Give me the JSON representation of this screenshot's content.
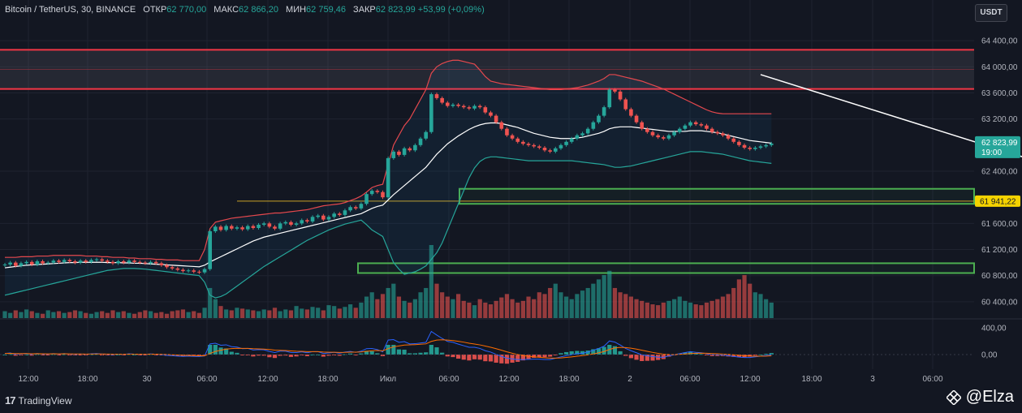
{
  "header": {
    "symbol": "Bitcoin / TetherUS, 30, BINANCE",
    "open_label": "ОТКР",
    "open_value": "62 770,00",
    "high_label": "МАКС",
    "high_value": "62 866,20",
    "low_label": "МИН",
    "low_value": "62 759,46",
    "close_label": "ЗАКР",
    "close_value": "62 823,99",
    "change": "+53,99 (+0,09%)"
  },
  "currency_button": "USDT",
  "brand": {
    "logo": "17",
    "name": "TradingView"
  },
  "watermark": "@Elza",
  "colors": {
    "bull": "#26a69a",
    "bear": "#ef5350",
    "resistance": "#f23645",
    "support": "#4caf50",
    "trend": "#ffffff",
    "level": "#f5d300"
  },
  "chart_data": {
    "type": "candlestick",
    "price_axis": {
      "ticks": [
        "64 400,00",
        "64 000,00",
        "63 600,00",
        "63 200,00",
        "62 400,00",
        "61 600,00",
        "61 200,00",
        "60 800,00",
        "60 400,00"
      ],
      "ylim": [
        60150,
        64650
      ]
    },
    "time_axis": {
      "ticks": [
        "12:00",
        "18:00",
        "30",
        "06:00",
        "12:00",
        "18:00",
        "Июл",
        "06:00",
        "12:00",
        "18:00",
        "2",
        "06:00",
        "12:00",
        "18:00",
        "3",
        "06:00"
      ]
    },
    "last_price_label": "62 823,99",
    "countdown_label": "19:00",
    "level_label": "61 941,22",
    "level_price": 61941.22,
    "resistance_zone": {
      "top": 64260,
      "bottom": 63660
    },
    "support_zones": [
      {
        "top": 62130,
        "bottom": 61900
      },
      {
        "top": 60990,
        "bottom": 60840
      }
    ],
    "trendline": {
      "from": [
        140,
        63880
      ],
      "to": [
        224,
        61700
      ]
    },
    "oscillator_ticks": [
      "400,00",
      "0,00"
    ],
    "close": [
      60970,
      61000,
      60950,
      60990,
      61010,
      60970,
      61020,
      60990,
      61000,
      61030,
      61010,
      61040,
      61020,
      61000,
      61030,
      61010,
      61040,
      61050,
      61030,
      61010,
      60990,
      61020,
      61000,
      61030,
      61010,
      61000,
      60990,
      61010,
      60990,
      60960,
      60930,
      60910,
      60890,
      60870,
      60880,
      60860,
      60850,
      60900,
      61480,
      61550,
      61500,
      61560,
      61520,
      61540,
      61510,
      61560,
      61530,
      61580,
      61600,
      61550,
      61520,
      61600,
      61620,
      61580,
      61600,
      61650,
      61630,
      61700,
      61720,
      61660,
      61700,
      61750,
      61730,
      61800,
      61850,
      61830,
      61900,
      62050,
      62100,
      62080,
      62000,
      62600,
      62700,
      62650,
      62750,
      62720,
      62800,
      62900,
      63000,
      63580,
      63520,
      63450,
      63400,
      63420,
      63400,
      63380,
      63360,
      63400,
      63380,
      63300,
      63250,
      63150,
      63050,
      62950,
      62900,
      62850,
      62820,
      62800,
      62780,
      62760,
      62720,
      62700,
      62750,
      62800,
      62850,
      62900,
      62950,
      62980,
      63050,
      63150,
      63250,
      63380,
      63650,
      63620,
      63500,
      63350,
      63250,
      63150,
      63050,
      63000,
      62950,
      62920,
      62900,
      62950,
      63000,
      63050,
      63100,
      63150,
      63120,
      63100,
      63050,
      63000,
      62980,
      62950,
      62900,
      62850,
      62800,
      62760,
      62740,
      62760,
      62780,
      62800,
      62824
    ],
    "volume": [
      8,
      6,
      9,
      7,
      10,
      8,
      6,
      5,
      9,
      7,
      8,
      6,
      7,
      9,
      8,
      6,
      5,
      7,
      8,
      6,
      9,
      7,
      8,
      6,
      5,
      7,
      9,
      8,
      6,
      7,
      5,
      8,
      9,
      10,
      7,
      8,
      6,
      12,
      35,
      22,
      14,
      10,
      9,
      12,
      11,
      10,
      9,
      8,
      10,
      9,
      12,
      8,
      10,
      9,
      14,
      11,
      10,
      13,
      12,
      9,
      15,
      14,
      11,
      13,
      16,
      12,
      18,
      25,
      30,
      22,
      28,
      35,
      40,
      25,
      20,
      18,
      22,
      30,
      35,
      85,
      40,
      30,
      25,
      22,
      28,
      20,
      18,
      15,
      22,
      18,
      16,
      20,
      24,
      28,
      22,
      18,
      20,
      25,
      22,
      30,
      28,
      35,
      40,
      30,
      25,
      22,
      28,
      32,
      35,
      40,
      45,
      50,
      55,
      35,
      30,
      28,
      25,
      22,
      20,
      18,
      16,
      15,
      18,
      20,
      22,
      25,
      20,
      18,
      16,
      15,
      18,
      20,
      22,
      25,
      28,
      35,
      45,
      50,
      40,
      30,
      28,
      22,
      18
    ],
    "bb_upper": [
      61080,
      61080,
      61080,
      61090,
      61090,
      61090,
      61100,
      61100,
      61100,
      61110,
      61110,
      61110,
      61110,
      61110,
      61110,
      61100,
      61100,
      61100,
      61090,
      61090,
      61080,
      61080,
      61080,
      61070,
      61070,
      61060,
      61060,
      61060,
      61050,
      61050,
      61040,
      61040,
      61040,
      61030,
      61030,
      61030,
      61030,
      61200,
      61520,
      61620,
      61640,
      61660,
      61680,
      61690,
      61700,
      61710,
      61720,
      61730,
      61740,
      61750,
      61760,
      61760,
      61770,
      61780,
      61790,
      61800,
      61810,
      61830,
      61850,
      61870,
      61880,
      61890,
      61900,
      61920,
      61950,
      61980,
      62020,
      62080,
      62150,
      62180,
      62200,
      62500,
      62800,
      62950,
      63100,
      63200,
      63350,
      63500,
      63650,
      63900,
      64000,
      64050,
      64080,
      64100,
      64100,
      64080,
      64060,
      64040,
      63950,
      63850,
      63780,
      63760,
      63740,
      63730,
      63720,
      63710,
      63700,
      63690,
      63680,
      63670,
      63660,
      63650,
      63650,
      63650,
      63660,
      63670,
      63680,
      63700,
      63720,
      63750,
      63780,
      63820,
      63880,
      63880,
      63860,
      63840,
      63820,
      63800,
      63780,
      63750,
      63720,
      63690,
      63660,
      63620,
      63580,
      63540,
      63500,
      63460,
      63420,
      63380,
      63340,
      63310,
      63290,
      63280,
      63280,
      63280,
      63280,
      63280,
      63280,
      63280,
      63280,
      63280,
      63280
    ],
    "bb_mid": [
      60920,
      60930,
      60940,
      60950,
      60960,
      60965,
      60970,
      60975,
      60980,
      60985,
      60990,
      60995,
      61000,
      61000,
      61005,
      61005,
      61005,
      61005,
      61005,
      61000,
      61000,
      61000,
      60995,
      60995,
      60990,
      60990,
      60985,
      60980,
      60975,
      60970,
      60965,
      60960,
      60955,
      60950,
      60945,
      60940,
      60935,
      60960,
      61010,
      61050,
      61090,
      61130,
      61170,
      61210,
      61250,
      61290,
      61330,
      61360,
      61390,
      61410,
      61430,
      61450,
      61470,
      61490,
      61510,
      61530,
      61550,
      61570,
      61590,
      61610,
      61630,
      61650,
      61670,
      61690,
      61710,
      61730,
      61750,
      61790,
      61830,
      61860,
      61880,
      61960,
      62040,
      62110,
      62180,
      62250,
      62320,
      62390,
      62460,
      62560,
      62660,
      62740,
      62820,
      62880,
      62940,
      62990,
      63040,
      63080,
      63110,
      63130,
      63140,
      63140,
      63130,
      63110,
      63090,
      63070,
      63040,
      63010,
      62980,
      62960,
      62940,
      62920,
      62910,
      62900,
      62900,
      62900,
      62910,
      62920,
      62940,
      62960,
      62980,
      63010,
      63050,
      63070,
      63080,
      63080,
      63080,
      63070,
      63060,
      63050,
      63040,
      63030,
      63020,
      63010,
      63010,
      63010,
      63010,
      63020,
      63020,
      63020,
      63010,
      63000,
      62990,
      62970,
      62950,
      62930,
      62910,
      62890,
      62870,
      62860,
      62850,
      62840,
      62830
    ],
    "bb_lower": [
      60500,
      60520,
      60540,
      60560,
      60580,
      60600,
      60620,
      60640,
      60660,
      60680,
      60700,
      60720,
      60740,
      60760,
      60780,
      60800,
      60820,
      60840,
      60860,
      60880,
      60890,
      60900,
      60910,
      60910,
      60910,
      60905,
      60900,
      60890,
      60880,
      60870,
      60860,
      60850,
      60840,
      60830,
      60820,
      60810,
      60800,
      60700,
      60500,
      60460,
      60480,
      60520,
      60580,
      60640,
      60700,
      60760,
      60820,
      60880,
      60940,
      60990,
      61040,
      61090,
      61140,
      61190,
      61240,
      61290,
      61340,
      61380,
      61420,
      61460,
      61500,
      61530,
      61560,
      61590,
      61610,
      61630,
      61650,
      61580,
      61500,
      61450,
      61400,
      61200,
      61000,
      60900,
      60820,
      60840,
      60860,
      60900,
      60950,
      61050,
      61150,
      61300,
      61500,
      61700,
      61900,
      62100,
      62300,
      62450,
      62550,
      62600,
      62620,
      62620,
      62610,
      62600,
      62590,
      62580,
      62570,
      62560,
      62560,
      62560,
      62560,
      62560,
      62560,
      62560,
      62560,
      62560,
      62550,
      62540,
      62530,
      62520,
      62510,
      62500,
      62480,
      62460,
      62460,
      62470,
      62480,
      62500,
      62520,
      62540,
      62560,
      62580,
      62600,
      62620,
      62640,
      62660,
      62680,
      62700,
      62700,
      62700,
      62690,
      62680,
      62670,
      62660,
      62640,
      62620,
      62600,
      62580,
      62560,
      62550,
      62540,
      62530,
      62520
    ]
  }
}
